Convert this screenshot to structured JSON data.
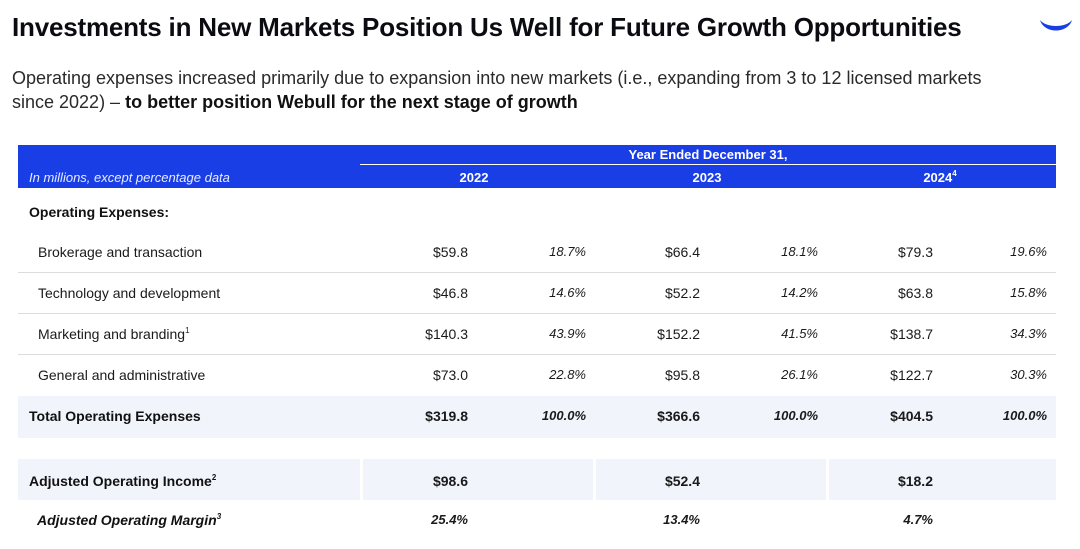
{
  "slide": {
    "title": "Investments in New Markets Position Us Well for Future Growth Opportunities",
    "subtitle_plain": "Operating expenses increased primarily due to expansion into new markets (i.e., expanding from 3 to 12 licensed markets since 2022) – ",
    "subtitle_emphasis": "to better position Webull for the next stage of growth",
    "logo_icon": "webull-crescent-icon",
    "accent_color": "#1a3ee6"
  },
  "table": {
    "note": "In millions, except percentage data",
    "period_header": "Year Ended December 31,",
    "years": [
      {
        "label": "2022",
        "sup": ""
      },
      {
        "label": "2023",
        "sup": ""
      },
      {
        "label": "2024",
        "sup": "4"
      }
    ],
    "section_label": "Operating Expenses:",
    "rows": [
      {
        "label": "Brokerage and transaction",
        "sup": "",
        "values": [
          "$59.8",
          "18.7%",
          "$66.4",
          "18.1%",
          "$79.3",
          "19.6%"
        ]
      },
      {
        "label": "Technology and development",
        "sup": "",
        "values": [
          "$46.8",
          "14.6%",
          "$52.2",
          "14.2%",
          "$63.8",
          "15.8%"
        ]
      },
      {
        "label": "Marketing and branding",
        "sup": "1",
        "values": [
          "$140.3",
          "43.9%",
          "$152.2",
          "41.5%",
          "$138.7",
          "34.3%"
        ]
      },
      {
        "label": "General and administrative",
        "sup": "",
        "values": [
          "$73.0",
          "22.8%",
          "$95.8",
          "26.1%",
          "$122.7",
          "30.3%"
        ]
      }
    ],
    "total": {
      "label": "Total Operating Expenses",
      "values": [
        "$319.8",
        "100.0%",
        "$366.6",
        "100.0%",
        "$404.5",
        "100.0%"
      ]
    },
    "adj_income": {
      "label": "Adjusted Operating Income",
      "sup": "2",
      "values": [
        "$98.6",
        "$52.4",
        "$18.2"
      ]
    },
    "adj_margin": {
      "label": "Adjusted Operating Margin",
      "sup": "3",
      "values": [
        "25.4%",
        "13.4%",
        "4.7%"
      ]
    }
  }
}
